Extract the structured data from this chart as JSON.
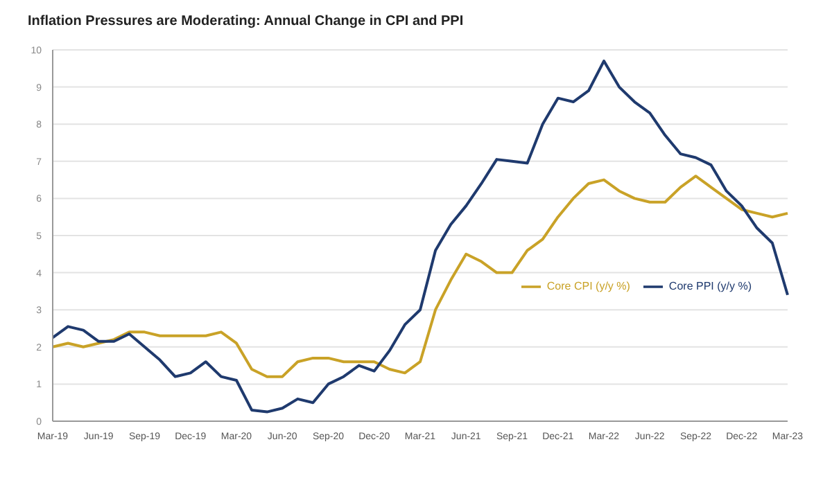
{
  "chart_data": {
    "type": "line",
    "title": "Inflation Pressures are Moderating: Annual Change in CPI and PPI",
    "categories": [
      "Mar-19",
      null,
      null,
      "Jun-19",
      null,
      null,
      "Sep-19",
      null,
      null,
      "Dec-19",
      null,
      null,
      "Mar-20",
      null,
      null,
      "Jun-20",
      null,
      null,
      "Sep-20",
      null,
      null,
      "Dec-20",
      null,
      null,
      "Mar-21",
      null,
      null,
      "Jun-21",
      null,
      null,
      "Sep-21",
      null,
      null,
      "Dec-21",
      null,
      null,
      "Mar-22",
      null,
      null,
      "Jun-22",
      null,
      null,
      "Sep-22",
      null,
      null,
      "Dec-22",
      null,
      null,
      "Mar-23"
    ],
    "series": [
      {
        "name": "Core CPI (y/y %)",
        "color": "#c9a227",
        "values": [
          2.0,
          2.1,
          2.0,
          2.1,
          2.2,
          2.4,
          2.4,
          2.3,
          2.3,
          2.3,
          2.3,
          2.4,
          2.1,
          1.4,
          1.2,
          1.2,
          1.6,
          1.7,
          1.7,
          1.6,
          1.6,
          1.6,
          1.4,
          1.3,
          1.6,
          3.0,
          3.8,
          4.5,
          4.3,
          4.0,
          4.0,
          4.6,
          4.9,
          5.5,
          6.0,
          6.4,
          6.5,
          6.2,
          6.0,
          5.9,
          5.9,
          6.3,
          6.6,
          6.3,
          6.0,
          5.7,
          5.6,
          5.5,
          5.6
        ]
      },
      {
        "name": "Core PPI (y/y %)",
        "color": "#1f3a6e",
        "values": [
          2.25,
          2.55,
          2.45,
          2.15,
          2.15,
          2.35,
          2.0,
          1.65,
          1.2,
          1.3,
          1.6,
          1.2,
          1.1,
          0.3,
          0.25,
          0.35,
          0.6,
          0.5,
          1.0,
          1.2,
          1.5,
          1.35,
          1.9,
          2.6,
          3.0,
          4.6,
          5.3,
          5.8,
          6.4,
          7.05,
          7.0,
          6.95,
          8.0,
          8.7,
          8.6,
          8.9,
          9.7,
          9.0,
          8.6,
          8.3,
          7.7,
          7.2,
          7.1,
          6.9,
          6.2,
          5.8,
          5.2,
          4.8,
          3.4
        ]
      }
    ],
    "ylim": [
      0,
      10
    ],
    "yticks": [
      0,
      1,
      2,
      3,
      4,
      5,
      6,
      7,
      8,
      9,
      10
    ],
    "grid": "y",
    "legend": "right",
    "marker": "none",
    "line_style": "solid"
  }
}
